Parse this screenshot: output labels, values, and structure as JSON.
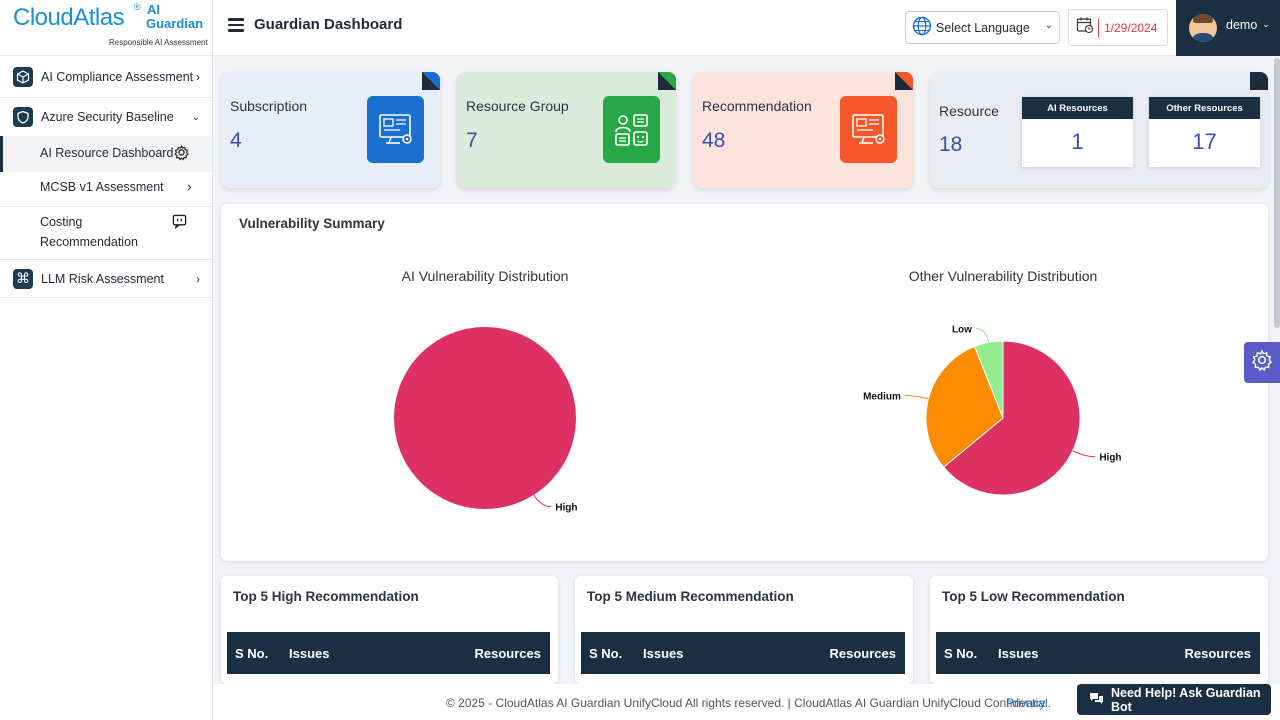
{
  "brand": {
    "name": "CloudAtlas",
    "reg": "®",
    "product_line1": "AI",
    "product_line2": "Guardian",
    "tagline": "Responsible AI Assessment"
  },
  "sidebar": {
    "items": [
      {
        "label": "AI Compliance Assessment",
        "icon": "cube-icon"
      },
      {
        "label": "Azure Security Baseline",
        "icon": "shield-icon"
      },
      {
        "label": "AI Resource Dashboard",
        "icon": "gear-icon"
      },
      {
        "label": "MCSB v1 Assessment"
      },
      {
        "label": "Costing",
        "label2": "Recommendation",
        "icon": "chat-icon"
      },
      {
        "label": "LLM Risk Assessment",
        "icon": "command-icon"
      }
    ]
  },
  "header": {
    "title": "Guardian Dashboard",
    "language_placeholder": "Select Language",
    "date": "1/29/2024",
    "user": "demo"
  },
  "cards": {
    "subscription": {
      "title": "Subscription",
      "value": "4",
      "accent": "#1a6fd0"
    },
    "resource_group": {
      "title": "Resource Group",
      "value": "7",
      "accent": "#27a745"
    },
    "recommendation": {
      "title": "Recommendation",
      "value": "48",
      "accent": "#f5572a"
    },
    "resource": {
      "title": "Resource",
      "value": "18",
      "ai_label": "AI Resources",
      "ai_value": "1",
      "other_label": "Other Resources",
      "other_value": "17"
    }
  },
  "vulnerability": {
    "title": "Vulnerability Summary"
  },
  "chart_data": [
    {
      "type": "pie",
      "title": "AI Vulnerability Distribution",
      "labels": [
        "High"
      ],
      "values": [
        1
      ],
      "colors": [
        "#de3163"
      ]
    },
    {
      "type": "pie",
      "title": "Other Vulnerability Distribution",
      "labels": [
        "High",
        "Medium",
        "Low"
      ],
      "values": [
        64,
        30,
        6
      ],
      "colors": [
        "#de3163",
        "#fb8c00",
        "#90ee90"
      ]
    }
  ],
  "recommendations": {
    "high": {
      "title": "Top 5 High Recommendation"
    },
    "medium": {
      "title": "Top 5 Medium Recommendation"
    },
    "low": {
      "title": "Top 5 Low Recommendation"
    },
    "columns": {
      "sno": "S No.",
      "issues": "Issues",
      "resources": "Resources"
    }
  },
  "footer": {
    "text": "© 2025 - CloudAtlas AI Guardian UnifyCloud All rights reserved. | CloudAtlas AI Guardian UnifyCloud Confidential.",
    "privacy": "Privacy"
  },
  "help": {
    "label": "Need Help! Ask Guardian Bot"
  }
}
